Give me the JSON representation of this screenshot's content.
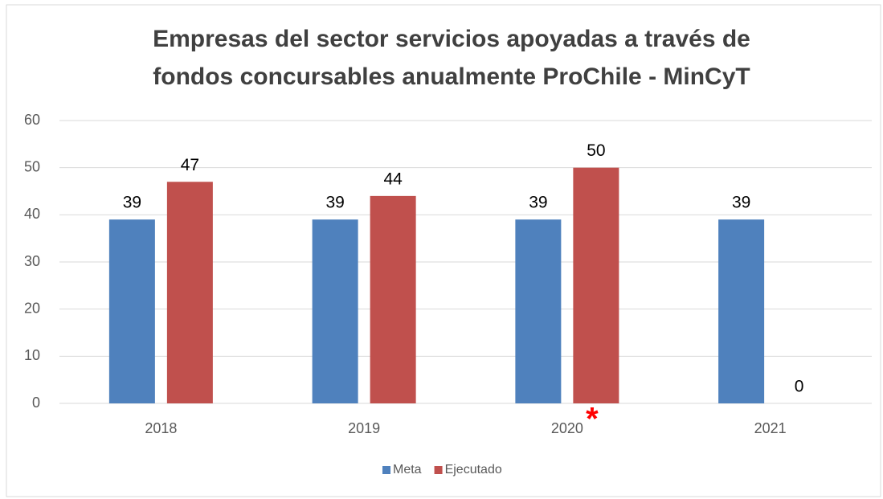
{
  "chart_data": {
    "type": "bar",
    "title": [
      "Empresas del sector servicios apoyadas a través de",
      "fondos concursables anualmente ProChile - MinCyT"
    ],
    "categories": [
      "2018",
      "2019",
      "2020",
      "2021"
    ],
    "series": [
      {
        "name": "Meta",
        "color": "#4f81bd",
        "values": [
          39,
          39,
          39,
          39
        ]
      },
      {
        "name": "Ejecutado",
        "color": "#c0504d",
        "values": [
          47,
          44,
          50,
          0
        ]
      }
    ],
    "ylim": [
      0,
      60
    ],
    "yticks": [
      0,
      10,
      20,
      30,
      40,
      50,
      60
    ],
    "grid": true,
    "legend": "bottom",
    "annotations": [
      {
        "text": "*",
        "category": 2,
        "color": "#ff0000"
      }
    ]
  }
}
